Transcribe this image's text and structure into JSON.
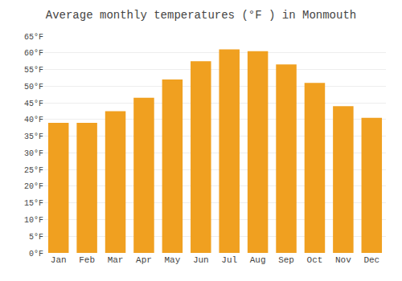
{
  "chart_data": {
    "type": "bar",
    "title": "Average monthly temperatures (°F ) in Monmouth",
    "categories": [
      "Jan",
      "Feb",
      "Mar",
      "Apr",
      "May",
      "Jun",
      "Jul",
      "Aug",
      "Sep",
      "Oct",
      "Nov",
      "Dec"
    ],
    "values": [
      39,
      39,
      42.5,
      46.5,
      52,
      57.5,
      61,
      60.5,
      56.5,
      51,
      44,
      40.5
    ],
    "color": "#F0A020",
    "ylim": [
      0,
      65
    ],
    "yticks": [
      {
        "value": 0,
        "label": "0°F"
      },
      {
        "value": 5,
        "label": "5°F"
      },
      {
        "value": 10,
        "label": "10°F"
      },
      {
        "value": 15,
        "label": "15°F"
      },
      {
        "value": 20,
        "label": "20°F"
      },
      {
        "value": 25,
        "label": "25°F"
      },
      {
        "value": 30,
        "label": "30°F"
      },
      {
        "value": 35,
        "label": "35°F"
      },
      {
        "value": 40,
        "label": "40°F"
      },
      {
        "value": 45,
        "label": "45°F"
      },
      {
        "value": 50,
        "label": "50°F"
      },
      {
        "value": 55,
        "label": "55°F"
      },
      {
        "value": 60,
        "label": "60°F"
      },
      {
        "value": 65,
        "label": "65°F"
      }
    ],
    "grid": true
  }
}
